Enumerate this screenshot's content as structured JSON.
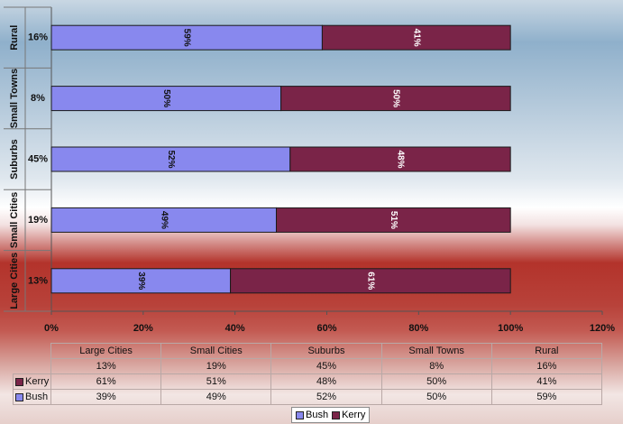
{
  "chart_data": {
    "type": "bar",
    "orientation": "horizontal",
    "stacked": true,
    "categories": [
      "Large Cities",
      "Small Cities",
      "Suburbs",
      "Small Towns",
      "Rural"
    ],
    "category_shares": [
      "13%",
      "19%",
      "45%",
      "8%",
      "16%"
    ],
    "series": [
      {
        "name": "Bush",
        "values": [
          39,
          49,
          52,
          50,
          59
        ],
        "labels": [
          "39%",
          "49%",
          "52%",
          "50%",
          "59%"
        ]
      },
      {
        "name": "Kerry",
        "values": [
          61,
          51,
          48,
          50,
          41
        ],
        "labels": [
          "61%",
          "51%",
          "48%",
          "50%",
          "41%"
        ]
      }
    ],
    "xlim": [
      0,
      120
    ],
    "xticks": [
      "0%",
      "20%",
      "40%",
      "60%",
      "80%",
      "100%",
      "120%"
    ],
    "title": "",
    "xlabel": "",
    "ylabel": "",
    "grid": false,
    "legend": "bottom-center"
  },
  "colors": {
    "Bush": "#8888ee",
    "Kerry": "#7a2448"
  },
  "table": {
    "header": [
      "Large Cities",
      "Small Cities",
      "Suburbs",
      "Small Towns",
      "Rural"
    ],
    "rows": [
      {
        "label": "",
        "values": [
          "13%",
          "19%",
          "45%",
          "8%",
          "16%"
        ]
      },
      {
        "label": "Kerry",
        "values": [
          "61%",
          "51%",
          "48%",
          "50%",
          "41%"
        ]
      },
      {
        "label": "Bush",
        "values": [
          "39%",
          "49%",
          "52%",
          "50%",
          "59%"
        ]
      }
    ]
  },
  "legend": {
    "items": [
      "Bush",
      "Kerry"
    ]
  }
}
